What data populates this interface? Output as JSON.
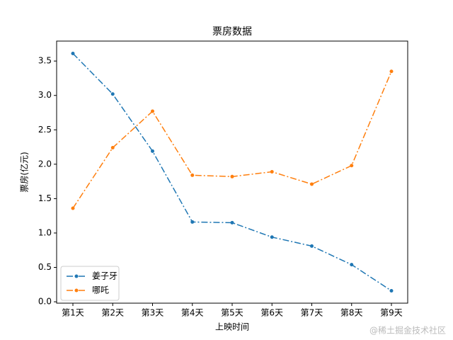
{
  "chart_data": {
    "type": "line",
    "title": "票房数据",
    "x_label": "上映时间",
    "y_label": "票房(亿元)",
    "categories": [
      "第1天",
      "第2天",
      "第3天",
      "第4天",
      "第5天",
      "第6天",
      "第7天",
      "第8天",
      "第9天"
    ],
    "series": [
      {
        "name": "姜子牙",
        "color": "#1f77b4",
        "values": [
          3.61,
          3.02,
          2.19,
          1.16,
          1.15,
          0.94,
          0.81,
          0.54,
          0.16
        ]
      },
      {
        "name": "哪吒",
        "color": "#ff7f0e",
        "values": [
          1.36,
          2.24,
          2.77,
          1.84,
          1.82,
          1.89,
          1.71,
          1.98,
          3.35
        ]
      }
    ],
    "ylim": [
      -0.02,
      3.79
    ],
    "yticks": [
      {
        "value": 0,
        "label": "0.0"
      },
      0.5,
      {
        "value": 1,
        "label": "1.0"
      },
      1.5,
      {
        "value": 2,
        "label": "2.0"
      },
      2.5,
      {
        "value": 3,
        "label": "3.0"
      },
      3.5
    ],
    "legend": "lower left",
    "grid": false,
    "watermark": "@稀土掘金技术社区"
  }
}
